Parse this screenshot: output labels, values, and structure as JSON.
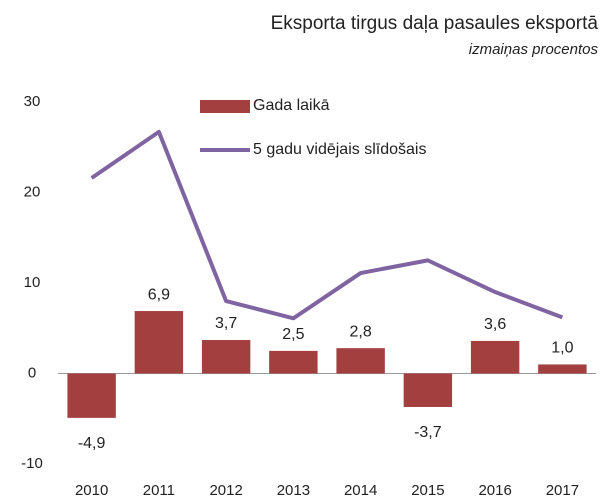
{
  "chart_data": {
    "type": "bar_line",
    "title": "Eksporta tirgus daļa pasaules eksportā",
    "subtitle": "izmaiņas procentos",
    "categories": [
      "2010",
      "2011",
      "2012",
      "2013",
      "2014",
      "2015",
      "2016",
      "2017"
    ],
    "series": [
      {
        "name": "Gada laikā",
        "type": "bar",
        "color": "#a33f3f",
        "values": [
          -4.9,
          6.9,
          3.7,
          2.5,
          2.8,
          -3.7,
          3.6,
          1.0
        ],
        "value_labels": [
          "-4,9",
          "6,9",
          "3,7",
          "2,5",
          "2,8",
          "-3,7",
          "3,6",
          "1,0"
        ]
      },
      {
        "name": "5 gadu vidējais slīdošais",
        "type": "line",
        "color": "#8064a2",
        "values": [
          21.6,
          26.7,
          8.0,
          6.1,
          11.1,
          12.5,
          9.0,
          6.2
        ]
      }
    ],
    "ylim": [
      -10,
      30
    ],
    "yticks": [
      -10,
      0,
      10,
      20,
      30
    ],
    "grid": false
  }
}
